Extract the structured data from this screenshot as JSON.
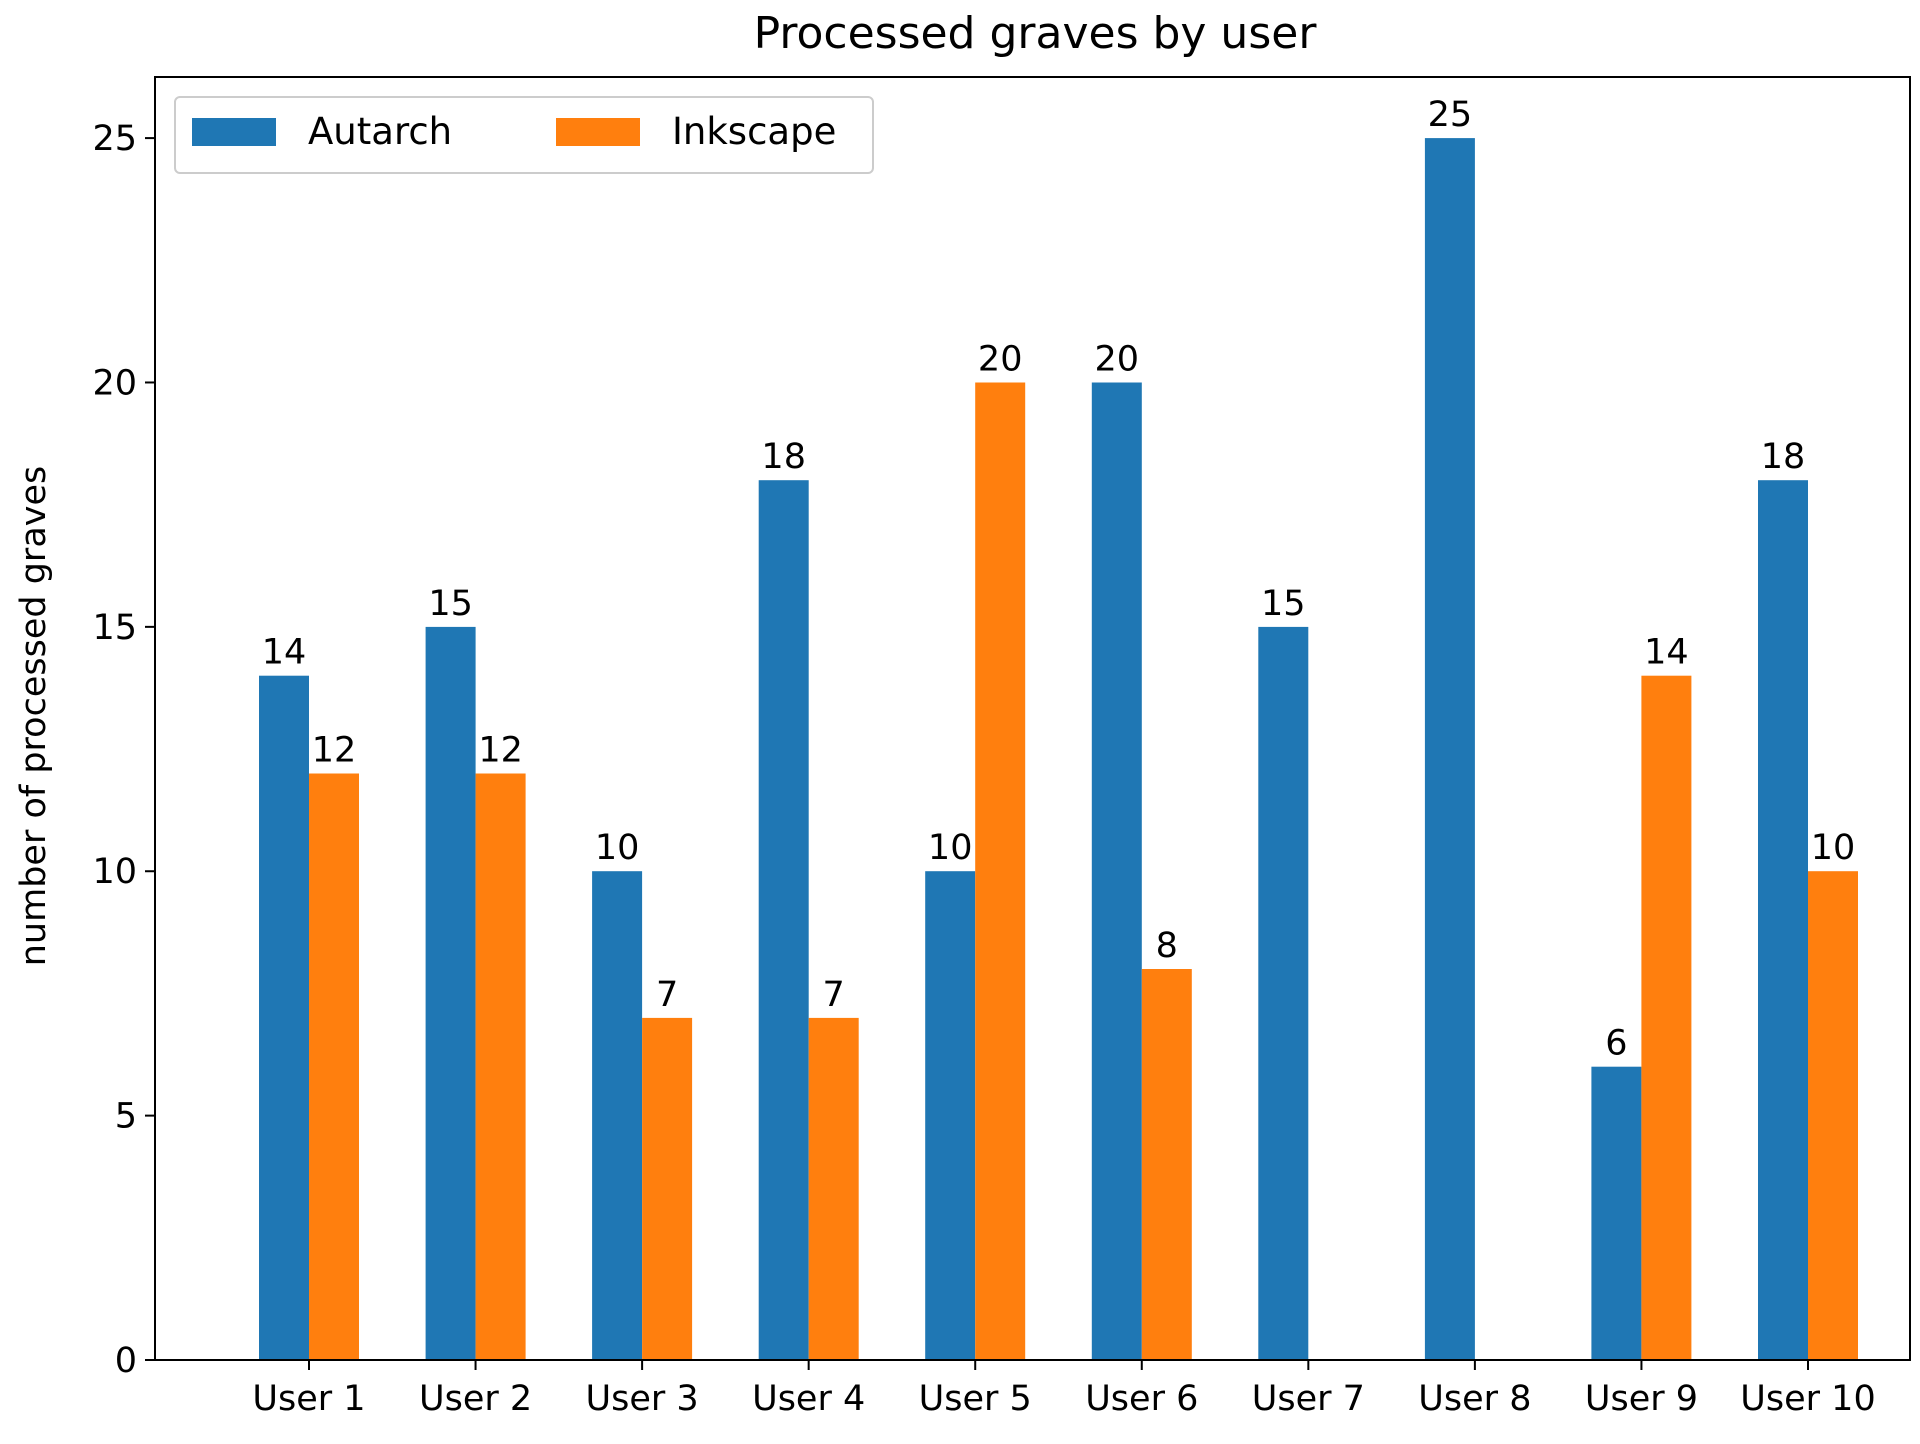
{
  "chart_data": {
    "type": "bar",
    "title": "Processed graves by user",
    "xlabel": "",
    "ylabel": "number of processed graves",
    "categories": [
      "User 1",
      "User 2",
      "User 3",
      "User 4",
      "User 5",
      "User 6",
      "User 7",
      "User 8",
      "User 9",
      "User 10"
    ],
    "series": [
      {
        "name": "Autarch",
        "color": "#1f77b4",
        "values": [
          14,
          15,
          10,
          18,
          10,
          20,
          15,
          25,
          6,
          18
        ]
      },
      {
        "name": "Inkscape",
        "color": "#ff7f0e",
        "values": [
          12,
          12,
          7,
          7,
          20,
          8,
          0,
          0,
          14,
          10
        ]
      }
    ],
    "ylim": [
      0,
      26.25
    ],
    "yticks": [
      0,
      5,
      10,
      15,
      20,
      25
    ],
    "grid": false,
    "legend_position": "top-left"
  }
}
